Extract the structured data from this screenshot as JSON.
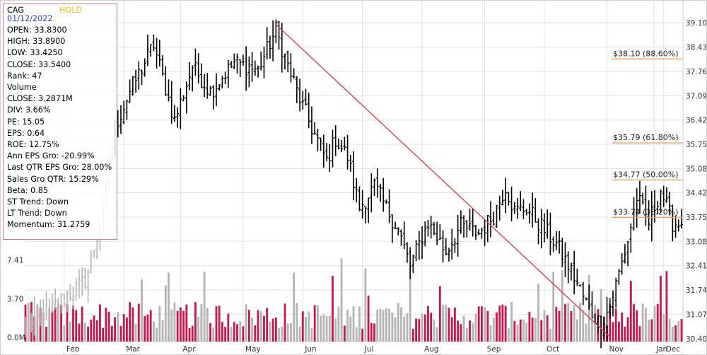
{
  "info": {
    "ticker": "CAG",
    "rating": "HOLD",
    "date": "01/12/2022",
    "lines": [
      "OPEN: 33.8300",
      "HIGH: 33.8900",
      "LOW: 33.4250",
      "CLOSE: 33.5400",
      "Rank: 47",
      "Volume",
      "CLOSE: 3.2871M",
      "DIV: 3.66%",
      "PE: 15.05",
      "EPS: 0.64",
      "ROE: 12.75%",
      "Ann EPS Gro: -20.99%",
      "Last QTR EPS Gro: 28.00%",
      "Sales Gro QTR: 15.29%",
      "Beta: 0.85",
      "ST Trend: Down",
      "LT Trend: Down",
      "Momentum: 31.2759"
    ]
  },
  "colors": {
    "up_volume": "#c8174a",
    "down_volume": "#b4b4b4",
    "price_bar": "#000000",
    "trend_line": "#d9393c",
    "fib_line": "#f0a25a",
    "grid": "#e2e2e2",
    "info_border": "#d77a85"
  },
  "chart_data": {
    "type": "ohlc",
    "price_axis": {
      "min": 30.4,
      "max": 39.1,
      "tick_labels": [
        "39.10",
        "38.43",
        "37.76",
        "37.09",
        "36.42",
        "35.75",
        "35.08",
        "34.42",
        "33.75",
        "33.08",
        "32.41",
        "31.74",
        "31.07",
        "30.40"
      ]
    },
    "volume_axis": {
      "tick_labels": [
        "7.41",
        "3.70",
        "0.0M"
      ],
      "tick_values": [
        7.41,
        3.7,
        0.0
      ]
    },
    "months": [
      "Feb",
      "Mar",
      "Apr",
      "May",
      "Jun",
      "Jul",
      "Aug",
      "Sep",
      "Oct",
      "Nov",
      "Dec",
      "Jan"
    ],
    "close_anchors": [
      {
        "day": 0,
        "close": 30.7
      },
      {
        "day": 10,
        "close": 31.3
      },
      {
        "day": 20,
        "close": 32.0
      },
      {
        "day": 25,
        "close": 33.5
      },
      {
        "day": 30,
        "close": 36.2
      },
      {
        "day": 35,
        "close": 37.2
      },
      {
        "day": 43,
        "close": 38.5
      },
      {
        "day": 50,
        "close": 36.4
      },
      {
        "day": 56,
        "close": 37.9
      },
      {
        "day": 62,
        "close": 37.2
      },
      {
        "day": 70,
        "close": 38.0
      },
      {
        "day": 78,
        "close": 37.8
      },
      {
        "day": 84,
        "close": 38.9
      },
      {
        "day": 88,
        "close": 37.9
      },
      {
        "day": 92,
        "close": 37.0
      },
      {
        "day": 96,
        "close": 36.2
      },
      {
        "day": 101,
        "close": 35.3
      },
      {
        "day": 104,
        "close": 35.9
      },
      {
        "day": 108,
        "close": 35.4
      },
      {
        "day": 112,
        "close": 34.0
      },
      {
        "day": 117,
        "close": 34.6
      },
      {
        "day": 125,
        "close": 33.4
      },
      {
        "day": 129,
        "close": 32.4
      },
      {
        "day": 135,
        "close": 33.6
      },
      {
        "day": 141,
        "close": 32.8
      },
      {
        "day": 146,
        "close": 33.5
      },
      {
        "day": 152,
        "close": 33.3
      },
      {
        "day": 157,
        "close": 33.8
      },
      {
        "day": 161,
        "close": 34.6
      },
      {
        "day": 164,
        "close": 33.9
      },
      {
        "day": 168,
        "close": 34.0
      },
      {
        "day": 172,
        "close": 33.6
      },
      {
        "day": 178,
        "close": 33.0
      },
      {
        "day": 184,
        "close": 32.1
      },
      {
        "day": 189,
        "close": 31.2
      },
      {
        "day": 193,
        "close": 30.8
      },
      {
        "day": 196,
        "close": 31.3
      },
      {
        "day": 199,
        "close": 32.2
      },
      {
        "day": 202,
        "close": 33.1
      },
      {
        "day": 205,
        "close": 34.3
      },
      {
        "day": 209,
        "close": 33.6
      },
      {
        "day": 213,
        "close": 34.5
      },
      {
        "day": 217,
        "close": 33.6
      },
      {
        "day": 220,
        "close": 33.54
      }
    ],
    "trend_line": {
      "from": {
        "day": 84,
        "price": 39.05
      },
      "to": {
        "day": 196,
        "price": 30.45
      }
    },
    "fib_levels": [
      {
        "price": 38.1,
        "label": "$38.10 (88.60%)"
      },
      {
        "price": 35.79,
        "label": "$35.79 (61.80%)"
      },
      {
        "price": 34.77,
        "label": "$34.77 (50.00%)"
      },
      {
        "price": 33.74,
        "label": "$33.74 (38.20%)"
      }
    ]
  }
}
